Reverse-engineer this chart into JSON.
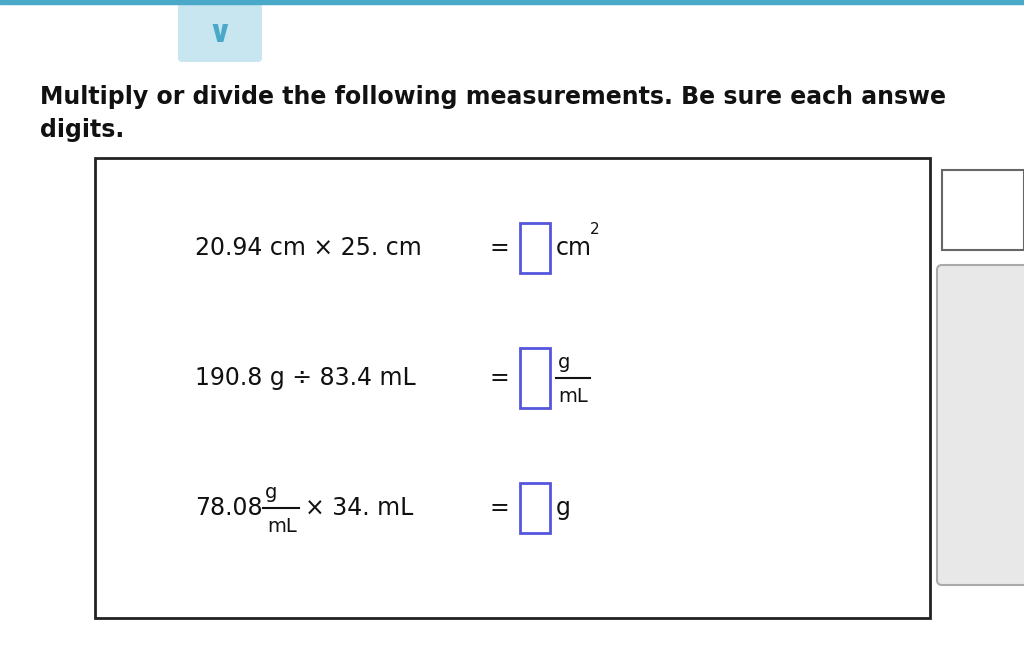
{
  "bg_color": "#ffffff",
  "page_bg": "#ffffff",
  "title_line1": "Multiply or divide the following measurements. Be sure each answe",
  "title_line2": "digits.",
  "chevron_bg": "#c8e6f0",
  "chevron_color": "#4aa8c8",
  "top_bar_color": "#4aa8c8",
  "font_size_title": 17,
  "font_size_body": 17,
  "font_size_small": 14,
  "font_size_super": 11,
  "input_box_color": "#5555dd",
  "box_edge_color": "#222222",
  "right_panel_color": "#cccccc",
  "text_color": "#111111",
  "row1_expr": "20.94 cm × 25. cm",
  "row2_expr": "190.8 g ÷ 83.4 mL",
  "row3_num": "78.08",
  "row3_rest": "× 34. mL"
}
